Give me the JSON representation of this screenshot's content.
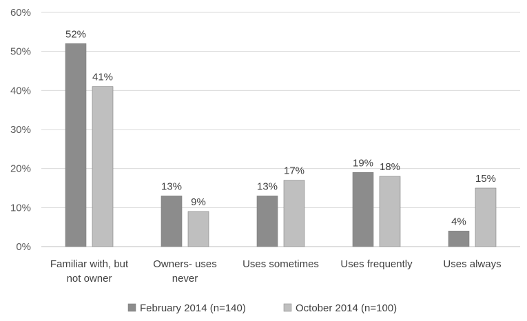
{
  "chart_data": {
    "type": "bar",
    "title": "",
    "xlabel": "",
    "ylabel": "",
    "categories": [
      [
        "Familiar with, but",
        "not owner"
      ],
      [
        "Owners- uses",
        "never"
      ],
      [
        "Uses sometimes"
      ],
      [
        "Uses frequently"
      ],
      [
        "Uses always"
      ]
    ],
    "series": [
      {
        "name": "February 2014 (n=140)",
        "color": "#8c8c8c",
        "values": [
          52,
          13,
          13,
          19,
          4
        ],
        "labels": [
          "52%",
          "13%",
          "13%",
          "19%",
          "4%"
        ]
      },
      {
        "name": "October 2014 (n=100)",
        "color": "#bfbfbf",
        "values": [
          41,
          9,
          17,
          18,
          15
        ],
        "labels": [
          "41%",
          "9%",
          "17%",
          "18%",
          "15%"
        ]
      }
    ],
    "ylim": [
      0,
      60
    ],
    "yticks": [
      0,
      10,
      20,
      30,
      40,
      50,
      60
    ],
    "ytick_labels": [
      "0%",
      "10%",
      "20%",
      "30%",
      "40%",
      "50%",
      "60%"
    ],
    "grid": true,
    "gridline_color": "#d9d9d9",
    "legend_position": "bottom"
  }
}
